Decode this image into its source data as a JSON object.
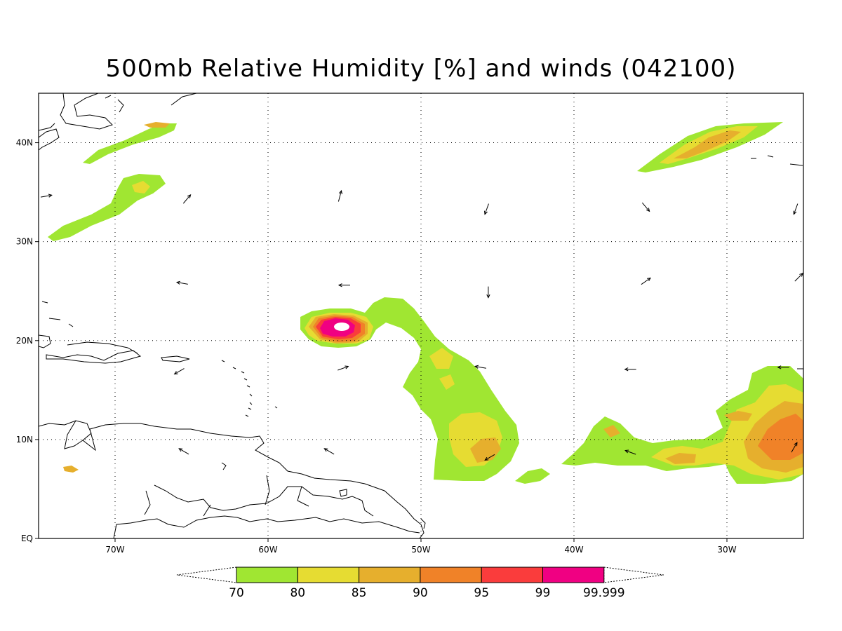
{
  "title": "500mb Relative Humidity [%] and winds (042100)",
  "map": {
    "lon_range": [
      -75,
      -25
    ],
    "lat_range": [
      0,
      45
    ],
    "lon_ticks": [
      {
        "value": -70,
        "label": "70W"
      },
      {
        "value": -60,
        "label": "60W"
      },
      {
        "value": -50,
        "label": "50W"
      },
      {
        "value": -40,
        "label": "40W"
      },
      {
        "value": -30,
        "label": "30W"
      }
    ],
    "lat_ticks": [
      {
        "value": 0,
        "label": "EQ"
      },
      {
        "value": 10,
        "label": "10N"
      },
      {
        "value": 20,
        "label": "20N"
      },
      {
        "value": 30,
        "label": "30N"
      },
      {
        "value": 40,
        "label": "40N"
      }
    ],
    "gridlines": "dotted"
  },
  "colorbar": {
    "bins": [
      {
        "color": "#a0e632",
        "label": "70"
      },
      {
        "color": "#e6dc32",
        "label": "80"
      },
      {
        "color": "#e6af2d",
        "label": "85"
      },
      {
        "color": "#f08228",
        "label": "90"
      },
      {
        "color": "#fa3c3c",
        "label": "95"
      },
      {
        "color": "#f00082",
        "label": "99"
      }
    ],
    "end_label": "99.999"
  },
  "winds": [
    {
      "lon": -74.5,
      "lat": 34.6,
      "dir": 80
    },
    {
      "lon": -65.3,
      "lat": 34.3,
      "dir": 40
    },
    {
      "lon": -55.3,
      "lat": 34.6,
      "dir": 15
    },
    {
      "lon": -45.7,
      "lat": 33.3,
      "dir": 200
    },
    {
      "lon": -35.3,
      "lat": 33.5,
      "dir": 140
    },
    {
      "lon": -25.5,
      "lat": 33.3,
      "dir": 200
    },
    {
      "lon": -65.6,
      "lat": 25.8,
      "dir": 280
    },
    {
      "lon": -55.0,
      "lat": 25.6,
      "dir": 270
    },
    {
      "lon": -45.6,
      "lat": 24.9,
      "dir": 180
    },
    {
      "lon": -35.3,
      "lat": 26.0,
      "dir": 55
    },
    {
      "lon": -25.3,
      "lat": 26.4,
      "dir": 45
    },
    {
      "lon": -65.8,
      "lat": 16.9,
      "dir": 240
    },
    {
      "lon": -55.1,
      "lat": 17.2,
      "dir": 70
    },
    {
      "lon": -46.1,
      "lat": 17.3,
      "dir": 280
    },
    {
      "lon": -36.3,
      "lat": 17.1,
      "dir": 270
    },
    {
      "lon": -26.3,
      "lat": 17.3,
      "dir": 270
    },
    {
      "lon": -65.5,
      "lat": 8.8,
      "dir": 300
    },
    {
      "lon": -56.0,
      "lat": 8.8,
      "dir": 300
    },
    {
      "lon": -45.5,
      "lat": 8.2,
      "dir": 240
    },
    {
      "lon": -36.3,
      "lat": 8.7,
      "dir": 290
    },
    {
      "lon": -25.6,
      "lat": 9.2,
      "dir": 30
    }
  ]
}
